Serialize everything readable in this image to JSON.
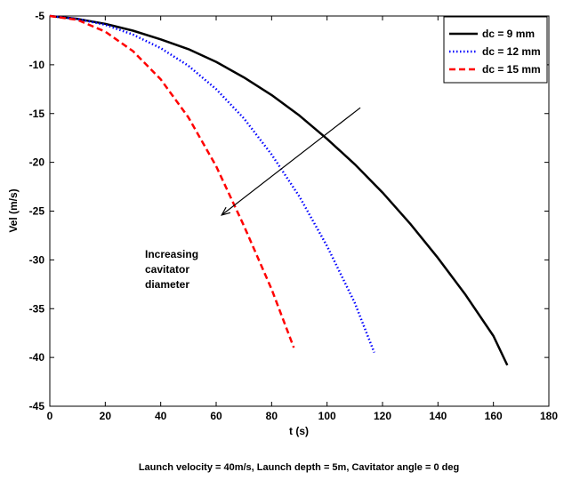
{
  "chart_data": {
    "type": "line",
    "title": "",
    "xlabel": "t (s)",
    "ylabel": "Vel (m/s)",
    "xlim": [
      0,
      180
    ],
    "ylim": [
      -45,
      -5
    ],
    "xticks": [
      0,
      20,
      40,
      60,
      80,
      100,
      120,
      140,
      160,
      180
    ],
    "yticks": [
      -5,
      -10,
      -15,
      -20,
      -25,
      -30,
      -35,
      -40,
      -45
    ],
    "grid": false,
    "legend_position": "top-right",
    "caption": "Launch velocity = 40m/s, Launch depth = 5m, Cavitator angle = 0 deg",
    "annotation": {
      "lines": [
        "Increasing",
        "cavitator",
        "diameter"
      ],
      "arrow_from": [
        112,
        -14.4
      ],
      "arrow_to": [
        62,
        -25.4
      ]
    },
    "series": [
      {
        "name": "dc = 9 mm",
        "color": "#000000",
        "dash": "solid",
        "x": [
          0,
          10,
          20,
          30,
          40,
          50,
          60,
          70,
          80,
          90,
          100,
          110,
          120,
          130,
          140,
          150,
          160,
          165
        ],
        "y": [
          -5.0,
          -5.3,
          -5.8,
          -6.5,
          -7.4,
          -8.4,
          -9.7,
          -11.3,
          -13.1,
          -15.2,
          -17.6,
          -20.2,
          -23.1,
          -26.3,
          -29.8,
          -33.6,
          -37.8,
          -40.8
        ]
      },
      {
        "name": "dc = 12 mm",
        "color": "#0000ff",
        "dash": "dotted",
        "x": [
          0,
          10,
          20,
          30,
          40,
          50,
          60,
          70,
          80,
          90,
          100,
          110,
          117
        ],
        "y": [
          -5.0,
          -5.3,
          -5.9,
          -6.9,
          -8.3,
          -10.1,
          -12.5,
          -15.5,
          -19.2,
          -23.5,
          -28.6,
          -34.4,
          -39.5
        ]
      },
      {
        "name": "dc = 15 mm",
        "color": "#ff0000",
        "dash": "dashed",
        "x": [
          0,
          10,
          20,
          30,
          40,
          50,
          60,
          70,
          80,
          88
        ],
        "y": [
          -5.0,
          -5.4,
          -6.6,
          -8.6,
          -11.5,
          -15.4,
          -20.4,
          -26.5,
          -33.0,
          -39.0
        ]
      }
    ]
  }
}
